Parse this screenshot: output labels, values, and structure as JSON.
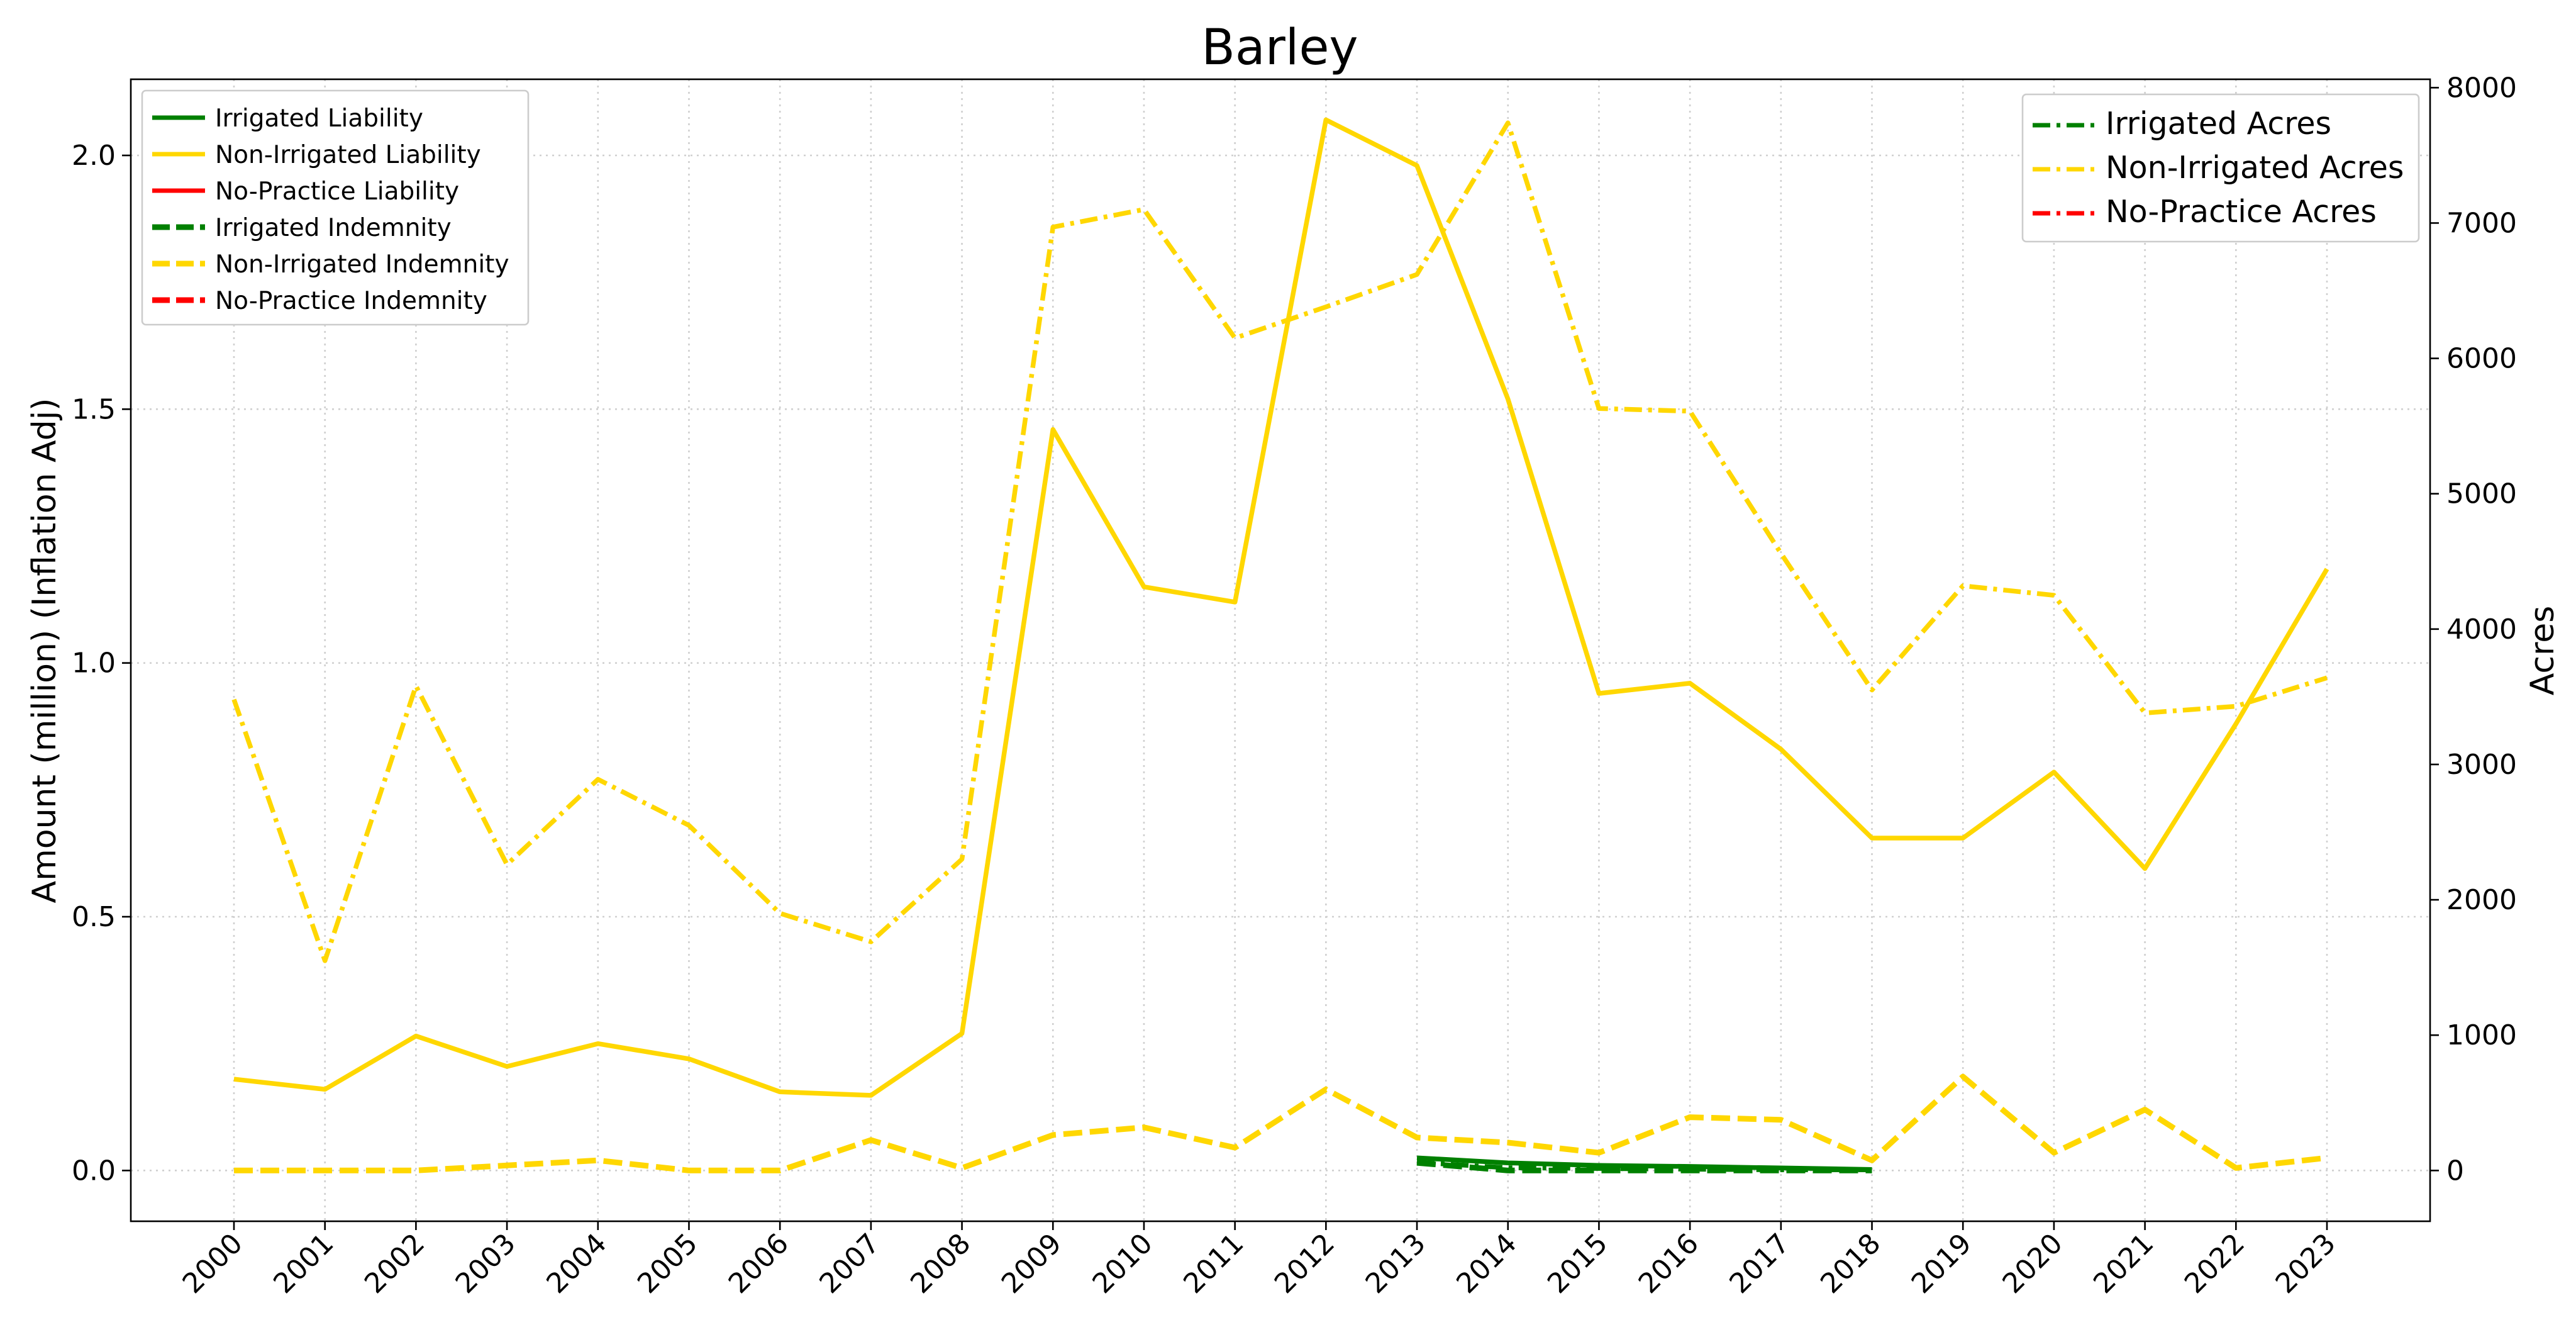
{
  "chart_data": {
    "type": "line",
    "title": "Barley",
    "xlabel": "",
    "ylabel_left": "Amount (million) (Inflation Adj)",
    "ylabel_right": "Acres",
    "x": [
      "2000",
      "2001",
      "2002",
      "2003",
      "2004",
      "2005",
      "2006",
      "2007",
      "2008",
      "2009",
      "2010",
      "2011",
      "2012",
      "2013",
      "2014",
      "2015",
      "2016",
      "2017",
      "2018",
      "2019",
      "2020",
      "2021",
      "2022",
      "2023"
    ],
    "ylim_left": [
      -0.1,
      2.15
    ],
    "ylim_right": [
      -375,
      8062
    ],
    "yticks_left": [
      "0.0",
      "0.5",
      "1.0",
      "1.5",
      "2.0"
    ],
    "yticks_left_values": [
      0,
      0.5,
      1.0,
      1.5,
      2.0
    ],
    "yticks_right": [
      "0",
      "1000",
      "2000",
      "3000",
      "4000",
      "5000",
      "6000",
      "7000",
      "8000"
    ],
    "yticks_right_values": [
      0,
      1000,
      2000,
      3000,
      4000,
      5000,
      6000,
      7000,
      8000
    ],
    "grid": true,
    "colors": {
      "irrigated": "#008000",
      "non_irrigated": "#FFD700",
      "no_practice": "#FF0000"
    },
    "series": [
      {
        "name": "Irrigated Liability",
        "axis": "left",
        "style": "solid",
        "color": "#008000",
        "values": [
          null,
          null,
          null,
          null,
          null,
          null,
          null,
          null,
          null,
          null,
          null,
          null,
          null,
          0.025,
          0.015,
          0.01,
          0.008,
          0.005,
          0.002,
          null,
          null,
          null,
          null,
          null
        ]
      },
      {
        "name": "Non-Irrigated Liability",
        "axis": "left",
        "style": "solid",
        "color": "#FFD700",
        "values": [
          0.18,
          0.16,
          0.265,
          0.205,
          0.25,
          0.22,
          0.155,
          0.148,
          0.27,
          1.46,
          1.15,
          1.12,
          2.07,
          1.98,
          1.52,
          0.94,
          0.96,
          0.83,
          0.655,
          0.655,
          0.785,
          0.595,
          0.88,
          1.185
        ]
      },
      {
        "name": "No-Practice Liability",
        "axis": "left",
        "style": "solid",
        "color": "#FF0000",
        "values": [
          null,
          null,
          null,
          null,
          null,
          null,
          null,
          null,
          null,
          null,
          null,
          null,
          null,
          null,
          null,
          null,
          null,
          null,
          null,
          null,
          null,
          null,
          null,
          null
        ]
      },
      {
        "name": "Irrigated Indemnity",
        "axis": "left",
        "style": "dashed",
        "color": "#008000",
        "values": [
          null,
          null,
          null,
          null,
          null,
          null,
          null,
          null,
          null,
          null,
          null,
          null,
          null,
          0.015,
          0.0,
          0.0,
          0.0,
          0.0,
          0.0,
          null,
          null,
          null,
          null,
          null
        ]
      },
      {
        "name": "Non-Irrigated Indemnity",
        "axis": "left",
        "style": "dashed",
        "color": "#FFD700",
        "values": [
          0.0,
          0.0,
          0.0,
          0.01,
          0.02,
          0.0,
          0.0,
          0.06,
          0.005,
          0.07,
          0.085,
          0.045,
          0.16,
          0.065,
          0.055,
          0.035,
          0.105,
          0.1,
          0.02,
          0.185,
          0.035,
          0.12,
          0.005,
          0.025
        ]
      },
      {
        "name": "No-Practice Indemnity",
        "axis": "left",
        "style": "dashed",
        "color": "#FF0000",
        "values": [
          null,
          null,
          null,
          null,
          null,
          null,
          null,
          null,
          null,
          null,
          null,
          null,
          null,
          null,
          null,
          null,
          null,
          null,
          null,
          null,
          null,
          null,
          null,
          null
        ]
      },
      {
        "name": "Irrigated Acres",
        "axis": "right",
        "style": "dashdot",
        "color": "#008000",
        "values": [
          null,
          null,
          null,
          null,
          null,
          null,
          null,
          null,
          null,
          null,
          null,
          null,
          null,
          60,
          20,
          15,
          10,
          5,
          5,
          null,
          null,
          null,
          null,
          null
        ]
      },
      {
        "name": "Non-Irrigated Acres",
        "axis": "right",
        "style": "dashdot",
        "color": "#FFD700",
        "values": [
          3480,
          1550,
          3580,
          2260,
          2890,
          2550,
          1900,
          1690,
          2300,
          6970,
          7100,
          6150,
          6380,
          6620,
          7740,
          5630,
          5610,
          4560,
          3550,
          4320,
          4250,
          3380,
          3430,
          3640
        ]
      },
      {
        "name": "No-Practice Acres",
        "axis": "right",
        "style": "dashdot",
        "color": "#FF0000",
        "values": [
          null,
          null,
          null,
          null,
          null,
          null,
          null,
          null,
          null,
          null,
          null,
          null,
          null,
          null,
          null,
          null,
          null,
          null,
          null,
          null,
          null,
          null,
          null,
          null
        ]
      }
    ],
    "legend_left": {
      "placement": "upper-left",
      "entries": [
        "Irrigated Liability",
        "Non-Irrigated Liability",
        "No-Practice Liability",
        "Irrigated Indemnity",
        "Non-Irrigated Indemnity",
        "No-Practice Indemnity"
      ]
    },
    "legend_right": {
      "placement": "upper-right",
      "entries": [
        "Irrigated Acres",
        "Non-Irrigated Acres",
        "No-Practice Acres"
      ]
    }
  }
}
